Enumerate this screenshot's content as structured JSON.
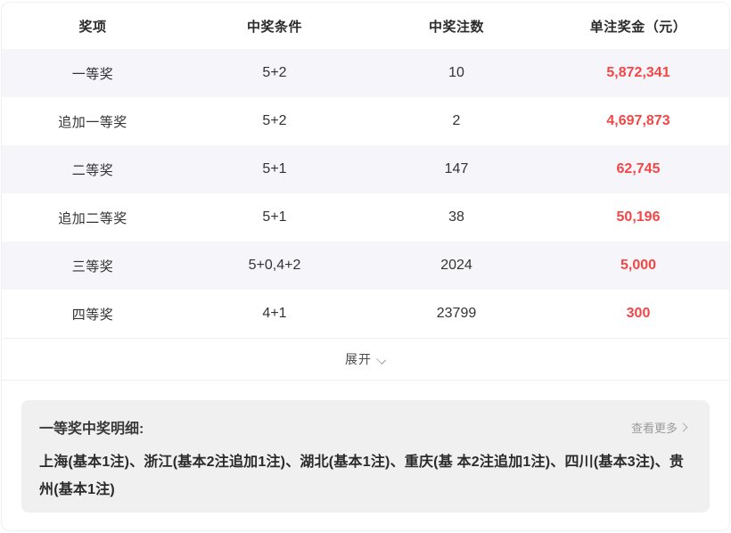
{
  "colors": {
    "amount_red": "#f54646",
    "striped_row_bg": "#f6f6fa",
    "details_card_bg": "#f0f0f0"
  },
  "table": {
    "headers": [
      "奖项",
      "中奖条件",
      "中奖注数",
      "单注奖金（元）"
    ],
    "rows": [
      {
        "prize": "一等奖",
        "condition": "5+2",
        "count": "10",
        "amount": "5,872,341"
      },
      {
        "prize": "追加一等奖",
        "condition": "5+2",
        "count": "2",
        "amount": "4,697,873"
      },
      {
        "prize": "二等奖",
        "condition": "5+1",
        "count": "147",
        "amount": "62,745"
      },
      {
        "prize": "追加二等奖",
        "condition": "5+1",
        "count": "38",
        "amount": "50,196"
      },
      {
        "prize": "三等奖",
        "condition": "5+0,4+2",
        "count": "2024",
        "amount": "5,000"
      },
      {
        "prize": "四等奖",
        "condition": "4+1",
        "count": "23799",
        "amount": "300"
      }
    ],
    "expand_label": "展开"
  },
  "details": {
    "title": "一等奖中奖明细:",
    "view_more_label": "查看更多",
    "text": "上海(基本1注)、浙江(基本2注追加1注)、湖北(基本1注)、重庆(基 本2注追加1注)、四川(基本3注)、贵州(基本1注)"
  }
}
